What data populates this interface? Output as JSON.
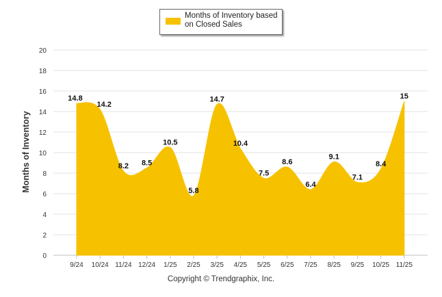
{
  "chart_data": {
    "type": "area",
    "categories": [
      "9/24",
      "10/24",
      "11/24",
      "12/24",
      "1/25",
      "2/25",
      "3/25",
      "4/25",
      "5/25",
      "6/25",
      "7/25",
      "8/25",
      "9/25",
      "10/25",
      "11/25"
    ],
    "series": [
      {
        "name": "Months of Inventory based on Closed Sales",
        "values": [
          14.8,
          14.2,
          8.2,
          8.5,
          10.5,
          5.8,
          14.7,
          10.4,
          7.5,
          8.6,
          6.4,
          9.1,
          7.1,
          8.4,
          15
        ],
        "data_labels": [
          "14.8",
          "14.2",
          "8.2",
          "8.5",
          "10.5",
          "5.8",
          "14.7",
          "10.4",
          "7.5",
          "8.6",
          "6.4",
          "9.1",
          "7.1",
          "8.4",
          "15"
        ],
        "color": "#f6c200"
      }
    ],
    "ylabel": "Months of Inventory",
    "xlabel": "",
    "ylim": [
      0,
      20
    ],
    "yticks": [
      "0",
      "2",
      "4",
      "6",
      "8",
      "10",
      "12",
      "14",
      "16",
      "18",
      "20"
    ],
    "grid": true,
    "legend": {
      "position": "top-center",
      "line1": "Months of Inventory based",
      "line2": "on Closed Sales"
    }
  },
  "footer": {
    "copyright": "Copyright © Trendgraphix, Inc."
  },
  "colors": {
    "area": "#f6c200",
    "grid": "#e3e3e3",
    "axis": "#c0c0c0",
    "text": "#333333"
  }
}
